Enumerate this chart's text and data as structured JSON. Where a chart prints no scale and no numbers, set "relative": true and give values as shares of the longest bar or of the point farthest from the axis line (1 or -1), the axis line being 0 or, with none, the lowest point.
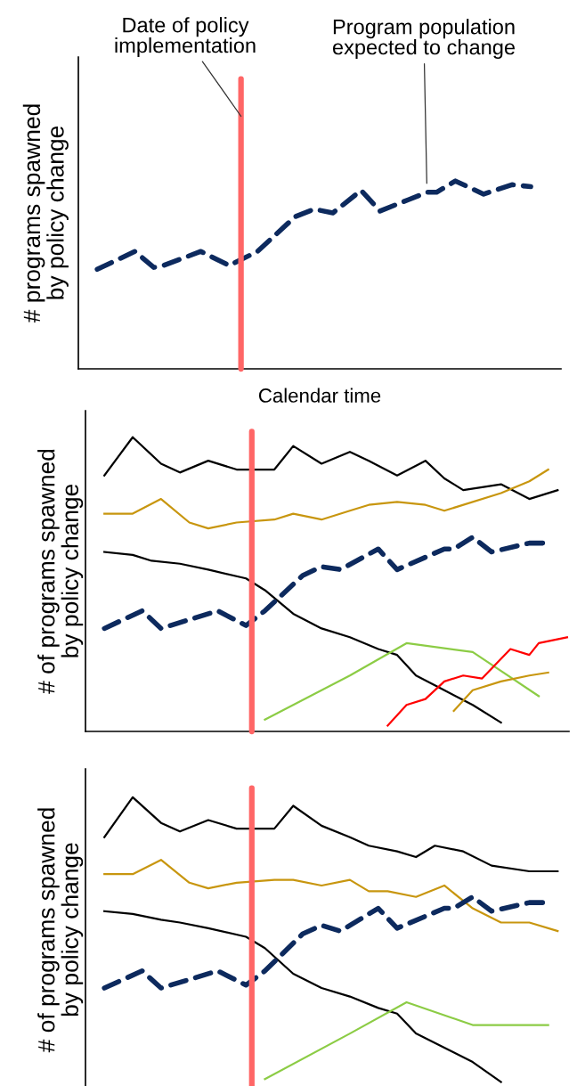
{
  "chart_data": [
    {
      "type": "line",
      "relative": true,
      "xlabel": "Calendar time",
      "ylabel": "# programs spawned\nby policy change",
      "categories": [
        null,
        null,
        null,
        null,
        null,
        null,
        null,
        null,
        null,
        null,
        null,
        null,
        null,
        null,
        null,
        null,
        null,
        null,
        null,
        null,
        null,
        null,
        null,
        null,
        null,
        null,
        null,
        null,
        null,
        null,
        null,
        null,
        null,
        null,
        null,
        null,
        null,
        null,
        null,
        null,
        null,
        null,
        null,
        null,
        null,
        null,
        null,
        null,
        null,
        null,
        null
      ],
      "series": [
        {
          "color": "#0d2a5e",
          "line_style": "dashed",
          "values": [
            null,
            0.53,
            null,
            null,
            null,
            0.625,
            null,
            0.54,
            0.55,
            null,
            null,
            null,
            0.625,
            null,
            null,
            0.55,
            null,
            null,
            0.625,
            null,
            null,
            null,
            0.81,
            null,
            0.85,
            null,
            0.83,
            null,
            null,
            0.95,
            null,
            0.84,
            null,
            null,
            0.9,
            null,
            0.94,
            0.94,
            null,
            1.0,
            null,
            null,
            0.93,
            null,
            null,
            0.98,
            null,
            0.97,
            null,
            null,
            null
          ]
        }
      ],
      "annotations": [
        "Date of policy\nimplementation",
        "Program population\nexpected to change"
      ]
    },
    {
      "type": "line",
      "relative": true,
      "ylabel": "# of programs spawned\nby policy change",
      "categories": [
        null,
        null,
        null,
        null,
        null,
        null,
        null,
        null,
        null,
        null,
        null,
        null,
        null,
        null,
        null,
        null,
        null,
        null,
        null,
        null,
        null,
        null,
        null,
        null,
        null,
        null,
        null,
        null,
        null,
        null,
        null,
        null,
        null,
        null,
        null,
        null,
        null,
        null,
        null,
        null,
        null,
        null,
        null,
        null,
        null,
        null,
        null,
        null,
        null,
        null,
        null
      ],
      "series": [
        {
          "color": "#000000",
          "line_style": "solid",
          "values": [
            null,
            0.87,
            null,
            null,
            1.0,
            null,
            null,
            0.91,
            null,
            0.88,
            null,
            null,
            0.92,
            null,
            null,
            0.89,
            null,
            null,
            null,
            0.89,
            null,
            0.97,
            null,
            null,
            0.91,
            null,
            null,
            0.95,
            null,
            0.92,
            null,
            null,
            0.87,
            null,
            null,
            0.92,
            null,
            0.86,
            null,
            0.82,
            null,
            null,
            null,
            0.84,
            null,
            null,
            0.79,
            null,
            null,
            0.82,
            null
          ]
        },
        {
          "color": "#c8960f",
          "line_style": "solid",
          "values": [
            null,
            0.74,
            null,
            null,
            0.74,
            null,
            null,
            0.79,
            null,
            null,
            0.71,
            null,
            0.69,
            null,
            null,
            0.71,
            null,
            null,
            null,
            0.72,
            null,
            0.74,
            null,
            null,
            0.72,
            null,
            null,
            0.75,
            null,
            0.77,
            null,
            null,
            0.78,
            null,
            null,
            0.77,
            null,
            0.75,
            null,
            null,
            null,
            null,
            null,
            0.81,
            null,
            null,
            0.85,
            null,
            0.89,
            null,
            null
          ]
        },
        {
          "color": "#000000",
          "line_style": "solid",
          "values": [
            null,
            0.61,
            null,
            null,
            0.6,
            null,
            0.58,
            null,
            null,
            0.57,
            null,
            null,
            0.55,
            null,
            null,
            null,
            0.52,
            null,
            0.48,
            null,
            null,
            0.4,
            null,
            null,
            0.35,
            null,
            null,
            0.32,
            null,
            null,
            0.28,
            null,
            0.26,
            null,
            0.19,
            null,
            null,
            0.14,
            null,
            null,
            0.09,
            null,
            null,
            0.03,
            null,
            null,
            null,
            null,
            null,
            null,
            null
          ]
        },
        {
          "color": "#0d2a5e",
          "line_style": "dashed",
          "values": [
            null,
            0.35,
            null,
            null,
            null,
            0.41,
            null,
            0.35,
            0.36,
            null,
            null,
            null,
            null,
            0.41,
            null,
            null,
            0.36,
            null,
            0.41,
            null,
            null,
            null,
            0.53,
            null,
            0.56,
            null,
            0.55,
            null,
            null,
            null,
            0.62,
            null,
            0.55,
            null,
            null,
            null,
            null,
            0.62,
            0.62,
            null,
            0.66,
            null,
            0.61,
            null,
            null,
            null,
            0.64,
            null,
            0.64,
            null,
            null
          ]
        },
        {
          "color": "#8ccc45",
          "line_style": "solid",
          "values": [
            null,
            null,
            null,
            null,
            null,
            null,
            null,
            null,
            null,
            null,
            null,
            null,
            null,
            null,
            null,
            null,
            null,
            null,
            0.04,
            null,
            null,
            null,
            null,
            null,
            null,
            null,
            null,
            0.19,
            null,
            null,
            null,
            null,
            null,
            0.3,
            null,
            null,
            null,
            null,
            null,
            null,
            0.27,
            null,
            null,
            null,
            null,
            null,
            null,
            0.12,
            null,
            null,
            null
          ]
        },
        {
          "color": "#ff0000",
          "line_style": "solid",
          "values": [
            null,
            null,
            null,
            null,
            null,
            null,
            null,
            null,
            null,
            null,
            null,
            null,
            null,
            null,
            null,
            null,
            null,
            null,
            null,
            null,
            null,
            null,
            null,
            null,
            null,
            null,
            null,
            null,
            null,
            null,
            null,
            0.02,
            null,
            0.09,
            null,
            0.11,
            null,
            0.17,
            null,
            0.19,
            null,
            0.18,
            null,
            null,
            0.28,
            null,
            0.26,
            0.3,
            null,
            null,
            0.32
          ]
        },
        {
          "color": "#c8960f",
          "line_style": "solid",
          "values": [
            null,
            null,
            null,
            null,
            null,
            null,
            null,
            null,
            null,
            null,
            null,
            null,
            null,
            null,
            null,
            null,
            null,
            null,
            null,
            null,
            null,
            null,
            null,
            null,
            null,
            null,
            null,
            null,
            null,
            null,
            null,
            null,
            null,
            null,
            null,
            null,
            null,
            null,
            0.07,
            null,
            0.14,
            null,
            null,
            0.17,
            null,
            null,
            0.19,
            null,
            0.2,
            null,
            null
          ]
        }
      ]
    },
    {
      "type": "line",
      "relative": true,
      "ylabel": "# of programs spawned\nby policy change",
      "categories": [
        null,
        null,
        null,
        null,
        null,
        null,
        null,
        null,
        null,
        null,
        null,
        null,
        null,
        null,
        null,
        null,
        null,
        null,
        null,
        null,
        null,
        null,
        null,
        null,
        null,
        null,
        null,
        null,
        null,
        null,
        null,
        null,
        null,
        null,
        null,
        null,
        null,
        null,
        null,
        null,
        null,
        null,
        null,
        null,
        null,
        null,
        null,
        null,
        null,
        null,
        null
      ],
      "series": [
        {
          "color": "#000000",
          "line_style": "solid",
          "values": [
            null,
            0.86,
            null,
            null,
            1.0,
            null,
            null,
            0.91,
            null,
            0.88,
            null,
            null,
            0.92,
            null,
            null,
            0.89,
            null,
            null,
            null,
            0.89,
            null,
            0.97,
            null,
            null,
            0.9,
            null,
            null,
            0.86,
            null,
            0.83,
            null,
            null,
            0.81,
            null,
            0.79,
            null,
            0.83,
            null,
            null,
            0.81,
            null,
            null,
            0.76,
            null,
            null,
            null,
            0.74,
            null,
            null,
            0.74,
            null
          ]
        },
        {
          "color": "#c8960f",
          "line_style": "solid",
          "values": [
            null,
            0.73,
            null,
            null,
            0.73,
            null,
            null,
            0.78,
            null,
            null,
            0.7,
            null,
            0.68,
            null,
            null,
            0.7,
            null,
            null,
            null,
            0.71,
            null,
            0.71,
            null,
            null,
            0.69,
            null,
            null,
            0.71,
            null,
            0.67,
            null,
            0.67,
            null,
            null,
            0.65,
            null,
            null,
            0.69,
            null,
            null,
            0.61,
            null,
            null,
            0.56,
            null,
            null,
            0.56,
            null,
            null,
            0.53,
            null
          ]
        },
        {
          "color": "#000000",
          "line_style": "solid",
          "values": [
            null,
            0.6,
            null,
            null,
            0.59,
            null,
            null,
            0.57,
            null,
            0.56,
            null,
            null,
            0.54,
            null,
            null,
            null,
            0.51,
            null,
            0.47,
            null,
            null,
            0.38,
            null,
            null,
            0.33,
            null,
            null,
            0.3,
            null,
            null,
            0.26,
            null,
            0.24,
            null,
            0.17,
            null,
            null,
            0.12,
            null,
            null,
            0.07,
            null,
            null,
            0.0,
            null,
            null,
            null,
            null,
            null,
            null,
            null
          ]
        },
        {
          "color": "#0d2a5e",
          "line_style": "dashed",
          "values": [
            null,
            0.33,
            null,
            null,
            null,
            0.39,
            null,
            0.33,
            0.34,
            null,
            null,
            null,
            null,
            0.39,
            null,
            null,
            0.34,
            null,
            0.39,
            null,
            null,
            null,
            0.52,
            null,
            0.55,
            null,
            0.53,
            null,
            null,
            null,
            0.61,
            null,
            0.54,
            null,
            null,
            null,
            null,
            0.61,
            0.61,
            null,
            0.65,
            null,
            0.6,
            null,
            null,
            null,
            0.63,
            null,
            0.63,
            null,
            null
          ]
        },
        {
          "color": "#8ccc45",
          "line_style": "solid",
          "values": [
            null,
            null,
            null,
            null,
            null,
            null,
            null,
            null,
            null,
            null,
            null,
            null,
            null,
            null,
            null,
            null,
            null,
            null,
            0.01,
            null,
            null,
            null,
            null,
            null,
            null,
            null,
            null,
            0.17,
            null,
            null,
            null,
            null,
            null,
            0.28,
            null,
            null,
            null,
            null,
            null,
            null,
            0.2,
            null,
            null,
            null,
            null,
            null,
            null,
            null,
            0.2,
            null,
            null
          ]
        }
      ]
    }
  ]
}
